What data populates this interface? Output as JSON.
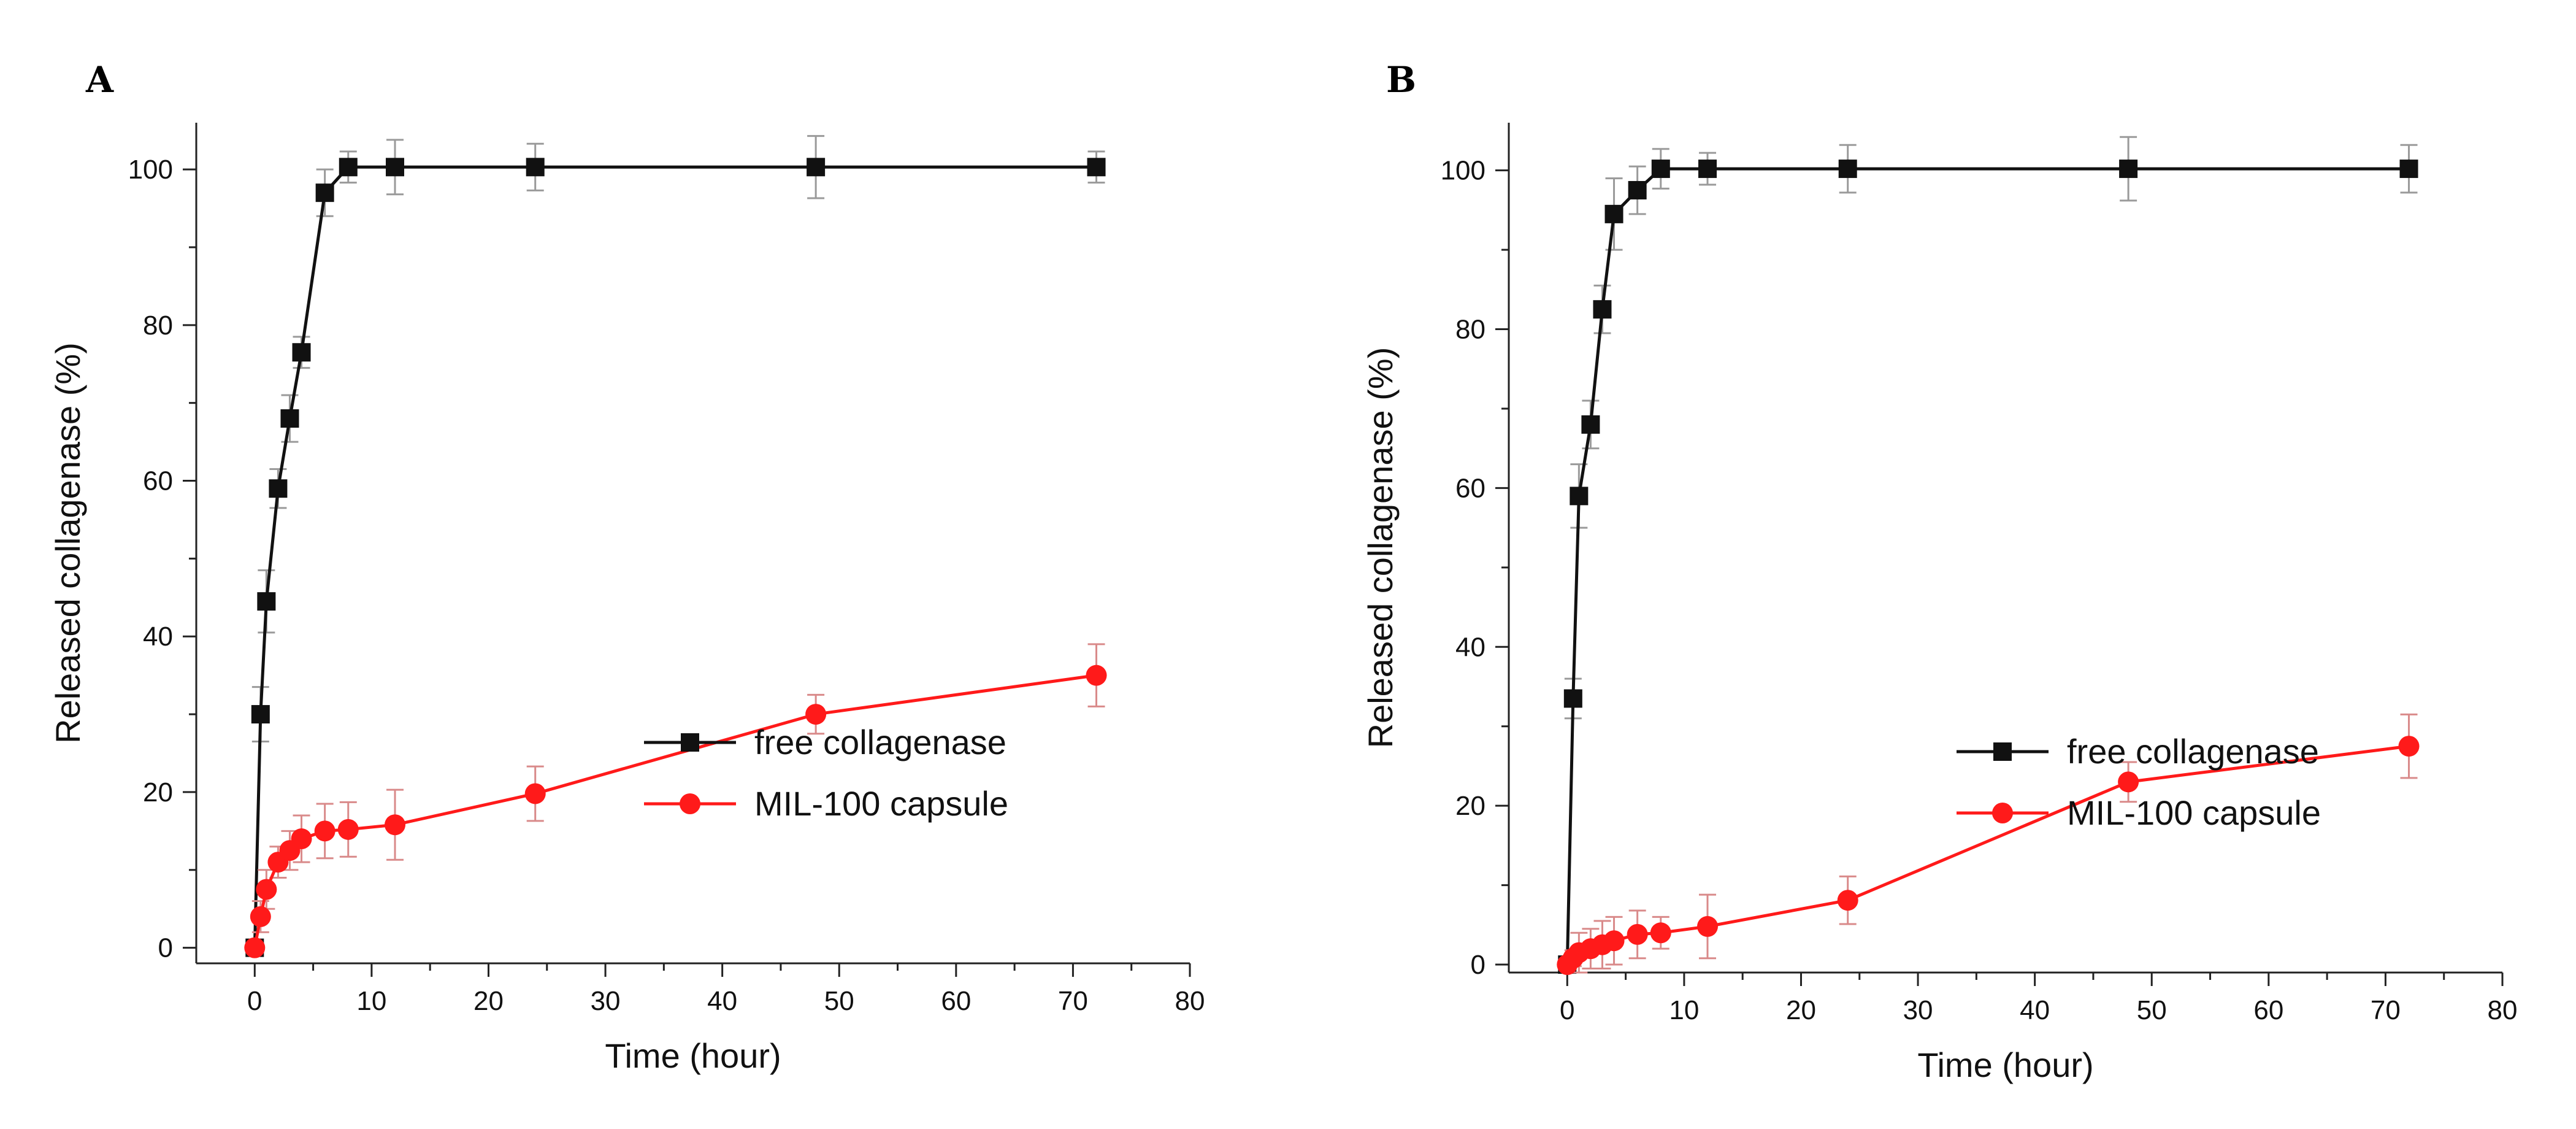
{
  "colors": {
    "free": "#111111",
    "capsule": "#ff1a1a",
    "capsule_err": "#d98a8a",
    "free_err": "#9a9a9a",
    "axis": "#222222"
  },
  "chart_data": [
    {
      "type": "line",
      "panel": "A",
      "xlabel": "Time (hour)",
      "ylabel": "Released collagenase (%)",
      "xlim": [
        -5,
        80
      ],
      "ylim": [
        -2,
        106
      ],
      "xticks": [
        0,
        10,
        20,
        30,
        40,
        50,
        60,
        70,
        80
      ],
      "yticks": [
        0,
        20,
        40,
        60,
        80,
        100
      ],
      "legend_position": "bottom-right",
      "series": [
        {
          "name": "free collagenase",
          "marker": "square",
          "x": [
            0,
            0.5,
            1,
            2,
            3,
            4,
            6,
            8,
            12,
            24,
            48,
            72
          ],
          "y": [
            0,
            30,
            44.5,
            59,
            68,
            76.5,
            97,
            100.3,
            100.3,
            100.3,
            100.3,
            100.3
          ],
          "err": [
            0,
            3.5,
            4,
            2.5,
            3,
            2,
            3,
            2,
            3.5,
            3,
            4,
            2
          ]
        },
        {
          "name": "MIL-100 capsule",
          "marker": "circle",
          "x": [
            0,
            0.5,
            1,
            2,
            3,
            4,
            6,
            8,
            12,
            24,
            48,
            72
          ],
          "y": [
            0,
            4,
            7.5,
            11,
            12.5,
            14,
            15,
            15.2,
            15.8,
            19.8,
            30,
            35
          ],
          "err": [
            0,
            2,
            2.5,
            2,
            2.5,
            3,
            3.5,
            3.5,
            4.5,
            3.5,
            2.5,
            4
          ]
        }
      ]
    },
    {
      "type": "line",
      "panel": "B",
      "xlabel": "Time (hour)",
      "ylabel": "Released collagenase (%)",
      "xlim": [
        -5,
        80
      ],
      "ylim": [
        -1,
        106
      ],
      "xticks": [
        0,
        10,
        20,
        30,
        40,
        50,
        60,
        70,
        80
      ],
      "yticks": [
        0,
        20,
        40,
        60,
        80,
        100
      ],
      "legend_position": "bottom-right",
      "series": [
        {
          "name": "free collagenase",
          "marker": "square",
          "x": [
            0,
            0.5,
            1,
            2,
            3,
            4,
            6,
            8,
            12,
            24,
            48,
            72
          ],
          "y": [
            0,
            33.5,
            59,
            68,
            82.5,
            94.5,
            97.5,
            100.2,
            100.2,
            100.2,
            100.2,
            100.2
          ],
          "err": [
            0,
            2.5,
            4,
            3,
            3,
            4.5,
            3,
            2.5,
            2,
            3,
            4,
            3
          ]
        },
        {
          "name": "MIL-100 capsule",
          "marker": "circle",
          "x": [
            0,
            0.5,
            1,
            2,
            3,
            4,
            6,
            8,
            12,
            24,
            48,
            72
          ],
          "y": [
            0,
            0.8,
            1.5,
            2,
            2.5,
            3,
            3.8,
            4,
            4.8,
            8.1,
            23,
            27.5
          ],
          "err": [
            0,
            1,
            2.5,
            2.5,
            3,
            3,
            3,
            2,
            4,
            3,
            2.5,
            4
          ]
        }
      ]
    }
  ]
}
